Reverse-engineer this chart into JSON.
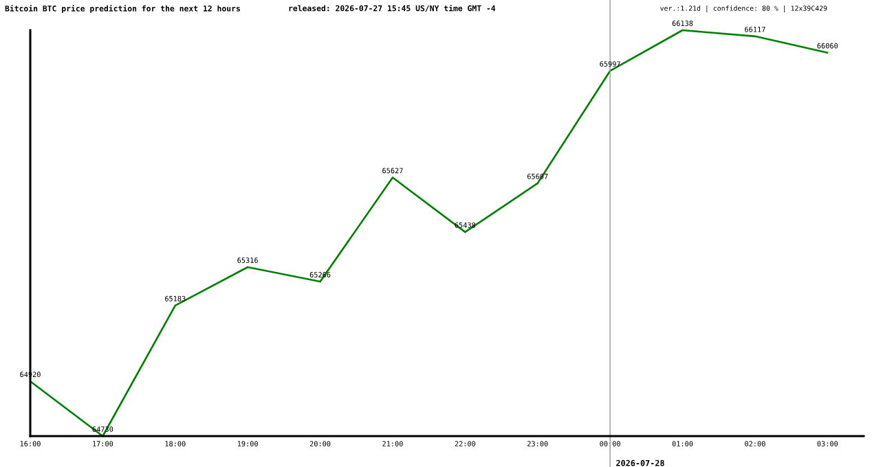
{
  "chart_data": {
    "type": "line",
    "title": "Bitcoin BTC price prediction for the next 12 hours",
    "subtitle": "released: 2026-07-27 15:45 US/NY time GMT -4",
    "annotations": [
      "ver.:1.21d | confidence: 80 % | 12x39C429"
    ],
    "categories": [
      "16:00",
      "17:00",
      "18:00",
      "19:00",
      "20:00",
      "21:00",
      "22:00",
      "23:00",
      "00:00",
      "01:00",
      "02:00",
      "03:00"
    ],
    "series": [
      {
        "color": "#008000",
        "values": [
          64920,
          64730,
          65183,
          65316,
          65266,
          65627,
          65438,
          65607,
          65997,
          66138,
          66117,
          66060
        ]
      }
    ],
    "ylim": [
      64730,
      66138
    ],
    "data_labels": true,
    "line_style": "solid",
    "tick_labels": "x",
    "ref_lines": [
      {
        "axis": "x",
        "value": "00:00",
        "label": "2026-07-28",
        "color": "#999999"
      }
    ]
  }
}
